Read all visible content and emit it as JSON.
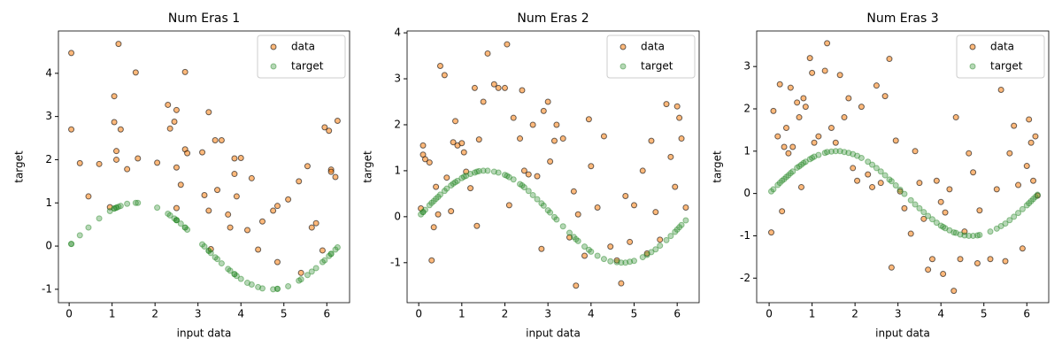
{
  "chart_data": [
    {
      "type": "scatter",
      "title": "Num Eras 1",
      "xlabel": "input data",
      "ylabel": "target",
      "legend": "upper right",
      "xlim": [
        -0.25,
        6.53
      ],
      "ylim": [
        -1.31,
        4.98
      ],
      "xticks": [
        0,
        1,
        2,
        3,
        4,
        5,
        6
      ],
      "yticks": [
        -1,
        0,
        1,
        2,
        3,
        4
      ],
      "x": [
        0.05,
        0.05,
        0.25,
        0.45,
        0.7,
        0.95,
        1.05,
        1.05,
        1.1,
        1.1,
        1.15,
        1.2,
        1.35,
        1.55,
        1.6,
        2.05,
        2.3,
        2.35,
        2.45,
        2.5,
        2.5,
        2.5,
        2.6,
        2.7,
        2.7,
        2.75,
        3.1,
        3.15,
        3.25,
        3.25,
        3.3,
        3.4,
        3.45,
        3.55,
        3.7,
        3.75,
        3.85,
        3.85,
        3.9,
        4.0,
        4.15,
        4.25,
        4.4,
        4.5,
        4.75,
        4.85,
        4.85,
        5.1,
        5.35,
        5.4,
        5.55,
        5.65,
        5.75,
        5.9,
        5.95,
        6.05,
        6.1,
        6.1,
        6.2,
        6.25
      ],
      "series": [
        {
          "name": "data",
          "color": "#ff7f0e",
          "values": [
            4.47,
            2.7,
            1.92,
            1.15,
            1.9,
            0.9,
            3.47,
            2.87,
            2.2,
            2.0,
            4.68,
            2.7,
            1.78,
            4.02,
            2.03,
            1.93,
            3.27,
            2.72,
            2.88,
            3.15,
            1.82,
            0.88,
            1.42,
            4.03,
            2.24,
            2.15,
            2.17,
            1.18,
            3.1,
            0.82,
            -0.07,
            2.45,
            1.3,
            2.45,
            0.73,
            0.43,
            1.67,
            2.03,
            1.15,
            2.04,
            0.37,
            1.57,
            -0.08,
            0.57,
            0.82,
            0.93,
            -0.37,
            1.08,
            1.5,
            -0.62,
            1.85,
            0.43,
            0.53,
            -0.1,
            2.75,
            2.67,
            1.77,
            1.72,
            1.6,
            2.9
          ]
        },
        {
          "name": "target",
          "color": "#2e8b2e",
          "values": [
            0.05,
            0.05,
            0.25,
            0.43,
            0.64,
            0.81,
            0.87,
            0.87,
            0.89,
            0.89,
            0.91,
            0.93,
            0.98,
            1.0,
            1.0,
            0.89,
            0.75,
            0.71,
            0.64,
            0.6,
            0.6,
            0.6,
            0.52,
            0.43,
            0.43,
            0.38,
            0.04,
            -0.01,
            -0.11,
            -0.11,
            -0.16,
            -0.26,
            -0.3,
            -0.4,
            -0.53,
            -0.57,
            -0.65,
            -0.65,
            -0.69,
            -0.76,
            -0.85,
            -0.89,
            -0.95,
            -0.98,
            -1.0,
            -0.99,
            -0.99,
            -0.93,
            -0.8,
            -0.77,
            -0.67,
            -0.59,
            -0.51,
            -0.37,
            -0.33,
            -0.23,
            -0.18,
            -0.18,
            -0.08,
            -0.03
          ]
        }
      ]
    },
    {
      "type": "scatter",
      "title": "Num Eras 2",
      "xlabel": "input data",
      "ylabel": "target",
      "legend": "upper right",
      "xlim": [
        -0.27,
        6.51
      ],
      "ylim": [
        -1.87,
        4.04
      ],
      "xticks": [
        0,
        1,
        2,
        3,
        4,
        5,
        6
      ],
      "yticks": [
        -1,
        0,
        1,
        2,
        3,
        4
      ],
      "x": [
        0.05,
        0.1,
        0.1,
        0.15,
        0.25,
        0.3,
        0.35,
        0.4,
        0.45,
        0.5,
        0.6,
        0.65,
        0.75,
        0.8,
        0.85,
        0.9,
        1.0,
        1.05,
        1.1,
        1.2,
        1.3,
        1.35,
        1.4,
        1.5,
        1.6,
        1.75,
        1.85,
        2.0,
        2.05,
        2.1,
        2.2,
        2.35,
        2.4,
        2.45,
        2.55,
        2.65,
        2.75,
        2.85,
        2.9,
        3.0,
        3.05,
        3.15,
        3.2,
        3.35,
        3.5,
        3.6,
        3.65,
        3.7,
        3.85,
        3.95,
        4.0,
        4.15,
        4.3,
        4.45,
        4.6,
        4.7,
        4.8,
        4.9,
        5.0,
        5.2,
        5.3,
        5.4,
        5.5,
        5.6,
        5.75,
        5.85,
        5.95,
        6.0,
        6.05,
        6.1,
        6.2
      ],
      "series": [
        {
          "name": "data",
          "color": "#ff7f0e",
          "values": [
            0.18,
            1.55,
            1.35,
            1.25,
            1.18,
            -0.95,
            -0.23,
            0.65,
            0.05,
            3.28,
            3.08,
            0.85,
            0.12,
            1.62,
            2.08,
            1.55,
            1.6,
            1.4,
            0.98,
            0.62,
            2.8,
            -0.2,
            1.68,
            2.5,
            3.55,
            2.88,
            2.8,
            2.8,
            3.75,
            0.25,
            2.15,
            1.7,
            2.75,
            1.0,
            0.92,
            2.0,
            0.88,
            -0.7,
            2.3,
            2.5,
            1.2,
            1.65,
            2.0,
            1.7,
            -0.45,
            0.55,
            -1.5,
            0.05,
            -0.85,
            2.12,
            1.1,
            0.2,
            1.75,
            -0.65,
            -0.95,
            -1.45,
            0.45,
            -0.55,
            0.25,
            1.0,
            -0.8,
            1.65,
            0.1,
            -0.5,
            2.45,
            1.3,
            0.65,
            2.4,
            2.15,
            1.7,
            0.2
          ]
        },
        {
          "name": "target",
          "color": "#2e8b2e",
          "values": [
            0.05,
            0.1,
            0.1,
            0.15,
            0.25,
            0.3,
            0.34,
            0.39,
            0.43,
            0.48,
            0.56,
            0.61,
            0.68,
            0.72,
            0.75,
            0.78,
            0.84,
            0.87,
            0.89,
            0.93,
            0.96,
            0.98,
            0.99,
            1.0,
            1.0,
            0.98,
            0.96,
            0.91,
            0.89,
            0.86,
            0.81,
            0.71,
            0.68,
            0.64,
            0.56,
            0.47,
            0.38,
            0.29,
            0.24,
            0.14,
            0.09,
            -0.01,
            -0.06,
            -0.21,
            -0.35,
            -0.44,
            -0.49,
            -0.53,
            -0.65,
            -0.72,
            -0.76,
            -0.85,
            -0.92,
            -0.97,
            -0.99,
            -1.0,
            -1.0,
            -0.98,
            -0.96,
            -0.88,
            -0.83,
            -0.77,
            -0.71,
            -0.63,
            -0.51,
            -0.42,
            -0.33,
            -0.28,
            -0.23,
            -0.18,
            -0.08
          ]
        }
      ]
    },
    {
      "type": "scatter",
      "title": "Num Eras 3",
      "xlabel": "input data",
      "ylabel": "target",
      "legend": "upper right",
      "xlim": [
        -0.29,
        6.51
      ],
      "ylim": [
        -2.58,
        3.84
      ],
      "xticks": [
        0,
        1,
        2,
        3,
        4,
        5,
        6
      ],
      "yticks": [
        -2,
        -1,
        0,
        1,
        2,
        3
      ],
      "x": [
        0.05,
        0.1,
        0.2,
        0.25,
        0.3,
        0.35,
        0.4,
        0.45,
        0.5,
        0.55,
        0.65,
        0.7,
        0.75,
        0.8,
        0.85,
        0.95,
        1.0,
        1.05,
        1.15,
        1.3,
        1.35,
        1.45,
        1.55,
        1.65,
        1.75,
        1.85,
        1.95,
        2.05,
        2.15,
        2.3,
        2.4,
        2.5,
        2.6,
        2.7,
        2.8,
        2.85,
        2.95,
        3.05,
        3.15,
        3.3,
        3.4,
        3.5,
        3.6,
        3.7,
        3.8,
        3.9,
        4.0,
        4.05,
        4.1,
        4.2,
        4.3,
        4.35,
        4.45,
        4.55,
        4.65,
        4.75,
        4.85,
        4.9,
        5.15,
        5.3,
        5.4,
        5.5,
        5.6,
        5.7,
        5.8,
        5.9,
        6.0,
        6.05,
        6.1,
        6.15,
        6.2,
        6.25
      ],
      "series": [
        {
          "name": "data",
          "color": "#ff7f0e",
          "values": [
            -0.92,
            1.95,
            1.35,
            2.58,
            -0.42,
            1.1,
            1.55,
            0.95,
            2.5,
            1.1,
            2.15,
            1.8,
            0.15,
            2.25,
            2.05,
            3.2,
            2.85,
            1.2,
            1.35,
            2.9,
            3.55,
            1.55,
            1.2,
            2.8,
            1.8,
            2.25,
            0.6,
            0.3,
            2.05,
            0.45,
            0.15,
            2.55,
            0.25,
            2.3,
            3.18,
            -1.75,
            1.25,
            0.05,
            -0.35,
            -0.95,
            1.0,
            0.25,
            -0.6,
            -1.8,
            -1.55,
            0.3,
            -0.2,
            -1.9,
            -0.45,
            0.1,
            -2.3,
            1.8,
            -1.55,
            -0.9,
            0.95,
            0.5,
            -1.65,
            -0.4,
            -1.55,
            0.1,
            2.45,
            -1.6,
            0.95,
            1.6,
            0.2,
            -1.3,
            0.65,
            1.75,
            1.2,
            0.3,
            1.35,
            -0.05
          ]
        },
        {
          "name": "target",
          "color": "#2e8b2e",
          "values": [
            0.05,
            0.1,
            0.2,
            0.25,
            0.3,
            0.34,
            0.39,
            0.43,
            0.48,
            0.52,
            0.61,
            0.64,
            0.68,
            0.72,
            0.75,
            0.81,
            0.84,
            0.87,
            0.91,
            0.96,
            0.98,
            0.99,
            1.0,
            1.0,
            0.98,
            0.96,
            0.93,
            0.89,
            0.84,
            0.75,
            0.68,
            0.6,
            0.52,
            0.43,
            0.33,
            0.29,
            0.19,
            0.09,
            -0.01,
            -0.16,
            -0.26,
            -0.35,
            -0.44,
            -0.53,
            -0.61,
            -0.69,
            -0.76,
            -0.79,
            -0.82,
            -0.87,
            -0.92,
            -0.93,
            -0.97,
            -0.99,
            -1.0,
            -1.0,
            -0.99,
            -0.98,
            -0.9,
            -0.83,
            -0.77,
            -0.71,
            -0.63,
            -0.55,
            -0.46,
            -0.37,
            -0.28,
            -0.23,
            -0.18,
            -0.13,
            -0.08,
            -0.03
          ]
        }
      ]
    }
  ]
}
